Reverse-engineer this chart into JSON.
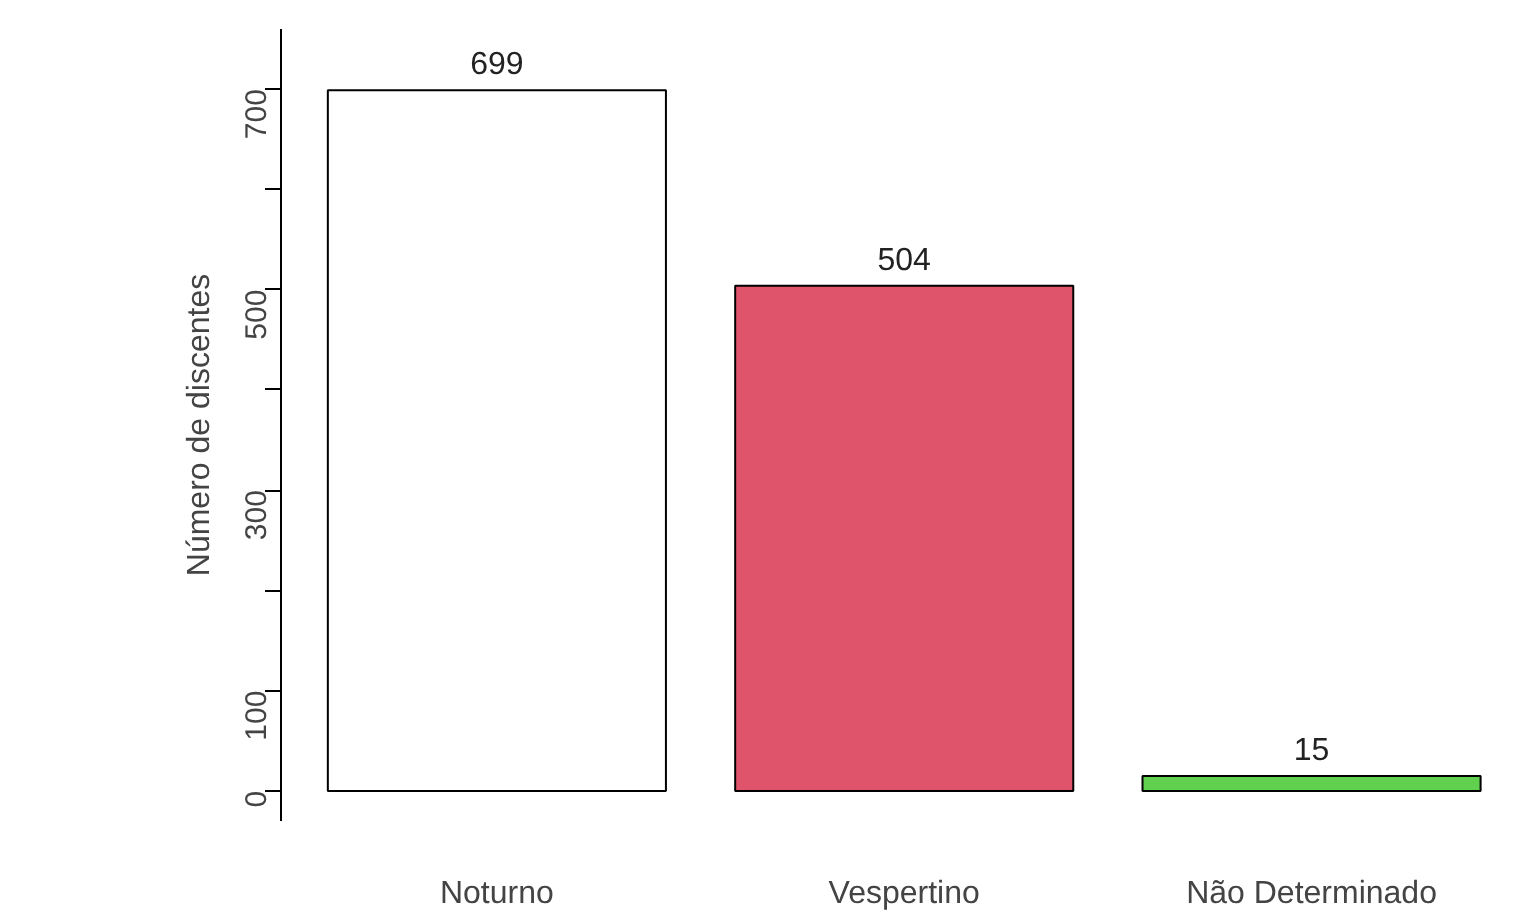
{
  "chart_data": {
    "type": "bar",
    "categories": [
      "Noturno",
      "Vespertino",
      "Não Determinado"
    ],
    "values": [
      699,
      504,
      15
    ],
    "colors": [
      "#ffffff",
      "#df536b",
      "#61d04f"
    ],
    "ylabel": "Número de discentes",
    "ylim": [
      -30,
      760
    ],
    "yticks": [
      0,
      100,
      {
        "value": 200,
        "label": null
      },
      300,
      {
        "value": 400,
        "label": null
      },
      500,
      {
        "value": 600,
        "label": null
      },
      700
    ],
    "data_labels": true
  }
}
